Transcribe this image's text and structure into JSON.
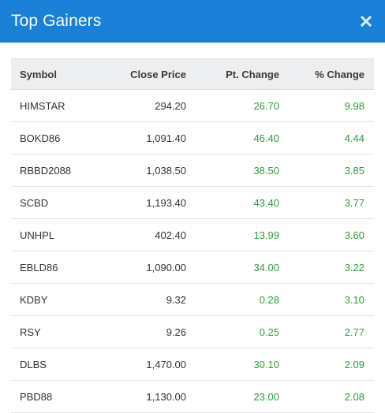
{
  "modal": {
    "title": "Top Gainers",
    "close_icon": "close-icon",
    "header_color": "#1a7fd6"
  },
  "table": {
    "headers": {
      "symbol": "Symbol",
      "close_price": "Close Price",
      "pt_change": "Pt. Change",
      "pct_change": "% Change"
    },
    "positive_color": "#2e9b3a",
    "rows": [
      {
        "symbol": "HIMSTAR",
        "close_price": "294.20",
        "pt_change": "26.70",
        "pct_change": "9.98"
      },
      {
        "symbol": "BOKD86",
        "close_price": "1,091.40",
        "pt_change": "46.40",
        "pct_change": "4.44"
      },
      {
        "symbol": "RBBD2088",
        "close_price": "1,038.50",
        "pt_change": "38.50",
        "pct_change": "3.85"
      },
      {
        "symbol": "SCBD",
        "close_price": "1,193.40",
        "pt_change": "43.40",
        "pct_change": "3.77"
      },
      {
        "symbol": "UNHPL",
        "close_price": "402.40",
        "pt_change": "13.99",
        "pct_change": "3.60"
      },
      {
        "symbol": "EBLD86",
        "close_price": "1,090.00",
        "pt_change": "34.00",
        "pct_change": "3.22"
      },
      {
        "symbol": "KDBY",
        "close_price": "9.32",
        "pt_change": "0.28",
        "pct_change": "3.10"
      },
      {
        "symbol": "RSY",
        "close_price": "9.26",
        "pt_change": "0.25",
        "pct_change": "2.77"
      },
      {
        "symbol": "DLBS",
        "close_price": "1,470.00",
        "pt_change": "30.10",
        "pct_change": "2.09"
      },
      {
        "symbol": "PBD88",
        "close_price": "1,130.00",
        "pt_change": "23.00",
        "pct_change": "2.08"
      }
    ]
  }
}
